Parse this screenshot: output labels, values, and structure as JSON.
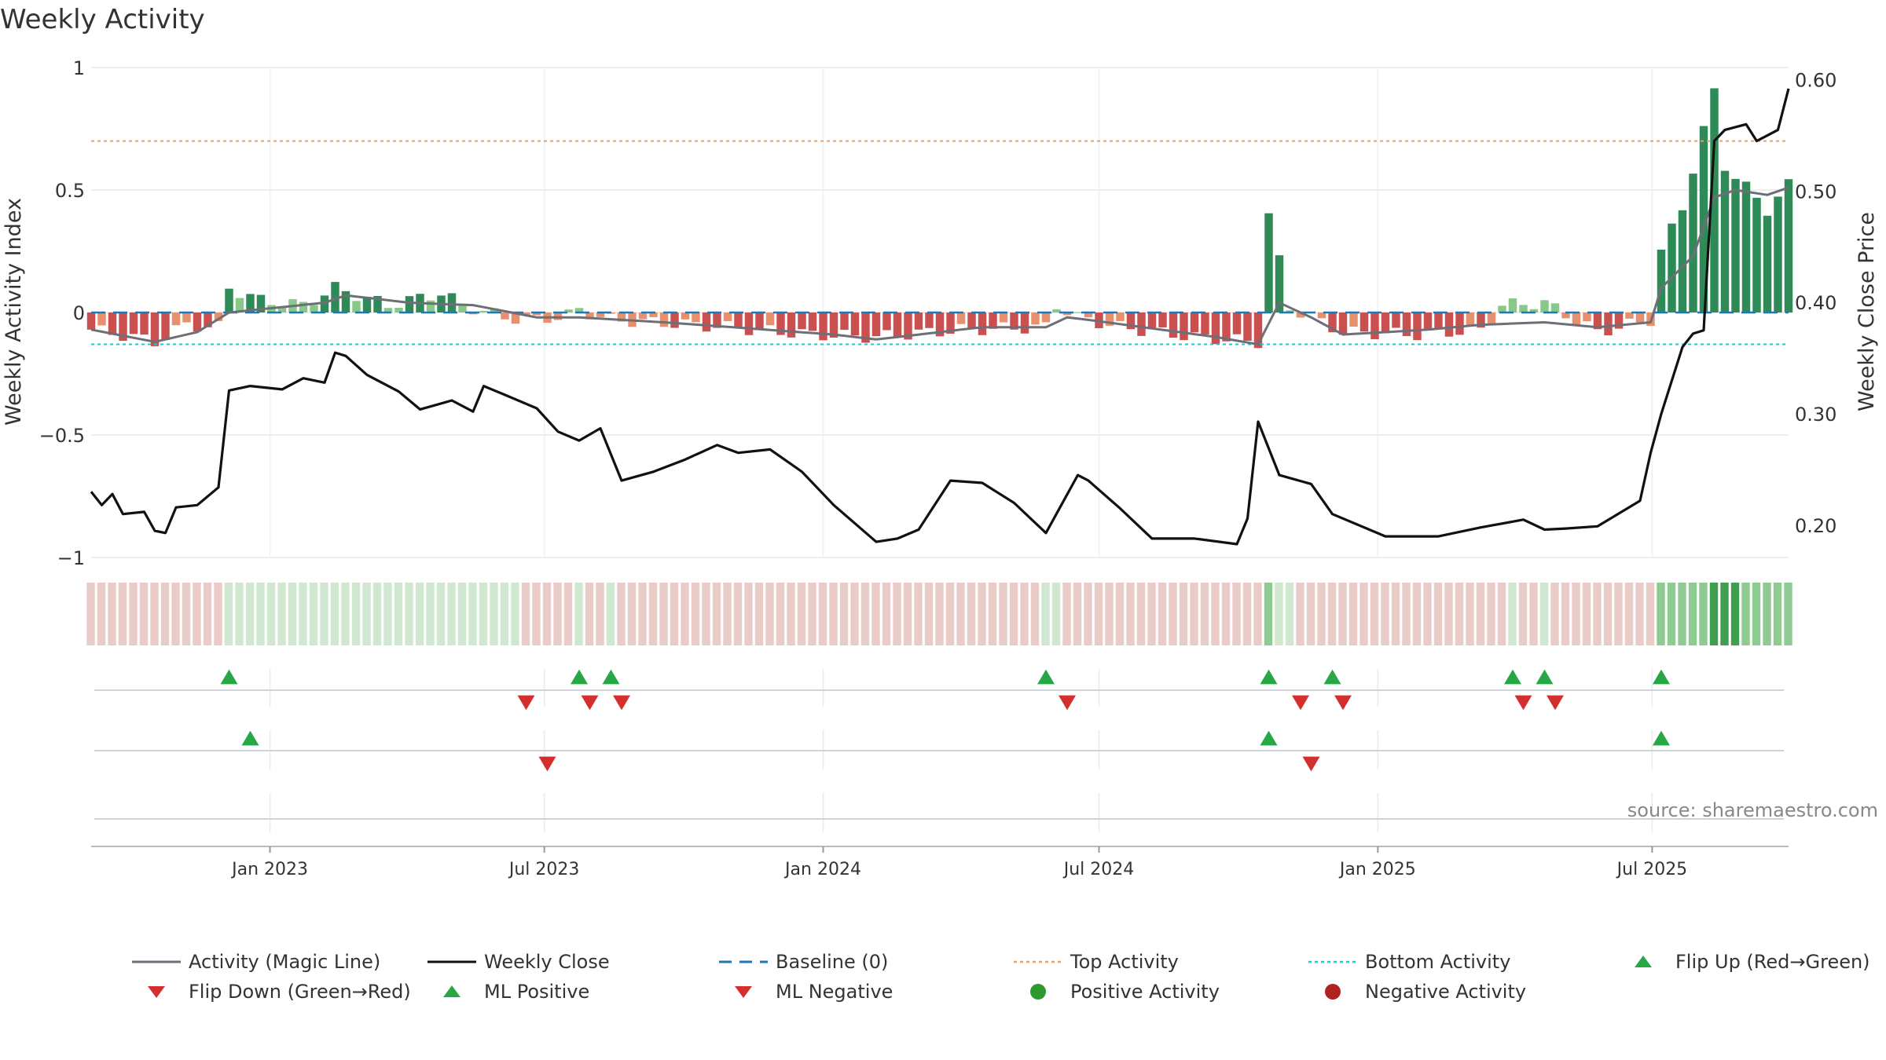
{
  "title": "Weekly Activity",
  "source": "source: sharemaestro.com",
  "colors": {
    "magic_line": "#6e6e78",
    "close_line": "#111111",
    "baseline": "#1f77b4",
    "top_activity": "#f0a060",
    "bottom_activity": "#22c5d5",
    "strong_green": "#2e8b57",
    "light_green": "#88c98a",
    "strong_red": "#c9504f",
    "light_red": "#e8906e",
    "marker_green": "#27a745",
    "marker_red": "#d32f2f",
    "positive_dot": "#2e9a2e",
    "negative_dot": "#b22222"
  },
  "legend": [
    {
      "label": "Activity (Magic Line)",
      "kind": "line",
      "color": "#6e6e78"
    },
    {
      "label": "Weekly Close",
      "kind": "line",
      "color": "#111111"
    },
    {
      "label": "Baseline (0)",
      "kind": "dash",
      "color": "#1f77b4"
    },
    {
      "label": "Top Activity",
      "kind": "dot",
      "color": "#f0a060"
    },
    {
      "label": "Bottom Activity",
      "kind": "dot",
      "color": "#22c5d5"
    },
    {
      "label": "Flip Up (Red→Green)",
      "kind": "tri-up",
      "color": "#27a745"
    },
    {
      "label": "Flip Down (Green→Red)",
      "kind": "tri-down",
      "color": "#d32f2f"
    },
    {
      "label": "ML Positive",
      "kind": "tri-up",
      "color": "#27a745"
    },
    {
      "label": "ML Negative",
      "kind": "tri-down",
      "color": "#d32f2f"
    },
    {
      "label": "Positive Activity",
      "kind": "circle",
      "color": "#2e9a2e"
    },
    {
      "label": "Negative Activity",
      "kind": "circle",
      "color": "#b22222"
    }
  ],
  "chart_data": {
    "type": "bar",
    "ylabel": "Weekly Activity Index",
    "ylabel_right": "Weekly Close Price",
    "ylim": [
      -1,
      1
    ],
    "y_ticks": [
      "1",
      "0.5",
      "0",
      "−0.5",
      "−1"
    ],
    "y_tick_values": [
      1,
      0.5,
      0,
      -0.5,
      -1
    ],
    "ylim_right": [
      0.171,
      0.611
    ],
    "y_ticks_right": [
      "0.60",
      "0.50",
      "0.40",
      "0.30",
      "0.20"
    ],
    "y_tick_values_right": [
      0.6,
      0.5,
      0.4,
      0.3,
      0.2
    ],
    "x_range": [
      "2022-09-05",
      "2025-09-29"
    ],
    "x_ticks": [
      "Jan 2023",
      "Jul 2023",
      "Jan 2024",
      "Jul 2024",
      "Jan 2025",
      "Jul 2025"
    ],
    "x_tick_dates": [
      "2023-01-01",
      "2023-07-01",
      "2024-01-01",
      "2024-07-01",
      "2025-01-01",
      "2025-07-01"
    ],
    "top_activity": 0.7,
    "bottom_activity": -0.13,
    "baseline": 0,
    "series_names": [
      "Activity (Magic Line)",
      "Weekly Close"
    ],
    "activity_keypoints": [
      [
        "2022-09-05",
        -0.07
      ],
      [
        "2022-10-03",
        -0.1
      ],
      [
        "2022-10-17",
        -0.12
      ],
      [
        "2022-11-07",
        -0.05
      ],
      [
        "2022-11-28",
        -0.06
      ],
      [
        "2022-12-05",
        0.1
      ],
      [
        "2022-12-26",
        0.05
      ],
      [
        "2023-01-23",
        0.03
      ],
      [
        "2023-02-13",
        0.1
      ],
      [
        "2023-03-20",
        0.03
      ],
      [
        "2023-04-24",
        0.08
      ],
      [
        "2023-05-08",
        0.03
      ],
      [
        "2023-06-05",
        -0.02
      ],
      [
        "2023-06-26",
        -0.03
      ],
      [
        "2023-07-17",
        -0.01
      ],
      [
        "2023-07-24",
        0.01
      ],
      [
        "2023-08-14",
        -0.03
      ],
      [
        "2023-09-11",
        -0.04
      ],
      [
        "2023-10-30",
        -0.06
      ],
      [
        "2023-12-25",
        -0.09
      ],
      [
        "2024-02-05",
        -0.1
      ],
      [
        "2024-04-01",
        -0.07
      ],
      [
        "2024-05-27",
        -0.06
      ],
      [
        "2024-06-03",
        0.03
      ],
      [
        "2024-06-17",
        -0.02
      ],
      [
        "2024-07-15",
        -0.06
      ],
      [
        "2024-09-02",
        -0.1
      ],
      [
        "2024-10-14",
        -0.12
      ],
      [
        "2024-10-21",
        0.4
      ],
      [
        "2024-11-04",
        0.02
      ],
      [
        "2024-12-09",
        -0.08
      ],
      [
        "2025-01-27",
        -0.09
      ],
      [
        "2025-03-10",
        -0.07
      ],
      [
        "2025-03-24",
        0.03
      ],
      [
        "2025-04-21",
        0.04
      ],
      [
        "2025-05-26",
        -0.08
      ],
      [
        "2025-06-30",
        -0.03
      ],
      [
        "2025-07-07",
        0.25
      ],
      [
        "2025-07-21",
        0.43
      ],
      [
        "2025-08-11",
        0.9
      ],
      [
        "2025-08-18",
        0.6
      ],
      [
        "2025-09-15",
        0.42
      ],
      [
        "2025-09-29",
        0.52
      ]
    ],
    "magic_line_keypoints": [
      [
        "2022-09-05",
        -0.07
      ],
      [
        "2022-10-17",
        -0.12
      ],
      [
        "2022-11-14",
        -0.08
      ],
      [
        "2022-12-05",
        0.0
      ],
      [
        "2023-02-06",
        0.04
      ],
      [
        "2023-02-20",
        0.07
      ],
      [
        "2023-04-03",
        0.04
      ],
      [
        "2023-05-15",
        0.03
      ],
      [
        "2023-06-26",
        -0.02
      ],
      [
        "2023-07-24",
        -0.02
      ],
      [
        "2023-09-18",
        -0.04
      ],
      [
        "2024-01-08",
        -0.09
      ],
      [
        "2024-02-05",
        -0.11
      ],
      [
        "2024-04-15",
        -0.06
      ],
      [
        "2024-05-27",
        -0.06
      ],
      [
        "2024-06-10",
        -0.02
      ],
      [
        "2024-06-24",
        -0.03
      ],
      [
        "2024-09-16",
        -0.1
      ],
      [
        "2024-10-14",
        -0.13
      ],
      [
        "2024-10-28",
        0.04
      ],
      [
        "2024-11-18",
        -0.02
      ],
      [
        "2024-12-09",
        -0.09
      ],
      [
        "2025-02-03",
        -0.07
      ],
      [
        "2025-03-10",
        -0.05
      ],
      [
        "2025-04-21",
        -0.04
      ],
      [
        "2025-05-26",
        -0.06
      ],
      [
        "2025-06-30",
        -0.04
      ],
      [
        "2025-07-07",
        0.1
      ],
      [
        "2025-07-28",
        0.23
      ],
      [
        "2025-08-11",
        0.47
      ],
      [
        "2025-08-25",
        0.5
      ],
      [
        "2025-09-15",
        0.48
      ],
      [
        "2025-09-29",
        0.51
      ]
    ],
    "close_keypoints": [
      [
        "2022-09-05",
        0.23
      ],
      [
        "2022-09-12",
        0.218
      ],
      [
        "2022-09-19",
        0.228
      ],
      [
        "2022-09-26",
        0.21
      ],
      [
        "2022-10-10",
        0.212
      ],
      [
        "2022-10-17",
        0.195
      ],
      [
        "2022-10-24",
        0.193
      ],
      [
        "2022-10-31",
        0.216
      ],
      [
        "2022-11-14",
        0.218
      ],
      [
        "2022-11-28",
        0.234
      ],
      [
        "2022-12-05",
        0.321
      ],
      [
        "2022-12-19",
        0.325
      ],
      [
        "2023-01-09",
        0.322
      ],
      [
        "2023-01-23",
        0.332
      ],
      [
        "2023-02-06",
        0.328
      ],
      [
        "2023-02-13",
        0.355
      ],
      [
        "2023-02-20",
        0.352
      ],
      [
        "2023-03-06",
        0.335
      ],
      [
        "2023-03-27",
        0.32
      ],
      [
        "2023-04-10",
        0.304
      ],
      [
        "2023-05-01",
        0.312
      ],
      [
        "2023-05-15",
        0.302
      ],
      [
        "2023-05-22",
        0.325
      ],
      [
        "2023-06-05",
        0.317
      ],
      [
        "2023-06-26",
        0.305
      ],
      [
        "2023-07-10",
        0.284
      ],
      [
        "2023-07-24",
        0.276
      ],
      [
        "2023-08-07",
        0.287
      ],
      [
        "2023-08-21",
        0.24
      ],
      [
        "2023-09-11",
        0.248
      ],
      [
        "2023-10-02",
        0.259
      ],
      [
        "2023-10-23",
        0.272
      ],
      [
        "2023-11-06",
        0.265
      ],
      [
        "2023-11-27",
        0.268
      ],
      [
        "2023-12-18",
        0.248
      ],
      [
        "2024-01-08",
        0.218
      ],
      [
        "2024-02-05",
        0.185
      ],
      [
        "2024-02-19",
        0.188
      ],
      [
        "2024-03-04",
        0.196
      ],
      [
        "2024-03-25",
        0.24
      ],
      [
        "2024-04-15",
        0.238
      ],
      [
        "2024-05-06",
        0.22
      ],
      [
        "2024-05-27",
        0.193
      ],
      [
        "2024-06-17",
        0.245
      ],
      [
        "2024-06-24",
        0.24
      ],
      [
        "2024-07-15",
        0.215
      ],
      [
        "2024-08-05",
        0.188
      ],
      [
        "2024-09-02",
        0.188
      ],
      [
        "2024-09-30",
        0.183
      ],
      [
        "2024-10-07",
        0.206
      ],
      [
        "2024-10-14",
        0.293
      ],
      [
        "2024-10-28",
        0.245
      ],
      [
        "2024-11-18",
        0.237
      ],
      [
        "2024-12-02",
        0.21
      ],
      [
        "2025-01-06",
        0.19
      ],
      [
        "2025-02-10",
        0.19
      ],
      [
        "2025-03-10",
        0.198
      ],
      [
        "2025-04-07",
        0.205
      ],
      [
        "2025-04-21",
        0.196
      ],
      [
        "2025-05-05",
        0.197
      ],
      [
        "2025-05-26",
        0.199
      ],
      [
        "2025-06-23",
        0.222
      ],
      [
        "2025-06-30",
        0.265
      ],
      [
        "2025-07-07",
        0.3
      ],
      [
        "2025-07-21",
        0.36
      ],
      [
        "2025-07-28",
        0.372
      ],
      [
        "2025-08-04",
        0.375
      ],
      [
        "2025-08-11",
        0.545
      ],
      [
        "2025-08-18",
        0.555
      ],
      [
        "2025-09-01",
        0.56
      ],
      [
        "2025-09-08",
        0.545
      ],
      [
        "2025-09-22",
        0.555
      ],
      [
        "2025-09-29",
        0.592
      ]
    ],
    "state_band_keypoints": [
      [
        "2022-09-05",
        "neg"
      ],
      [
        "2022-12-05",
        "pos"
      ],
      [
        "2023-06-19",
        "neg"
      ],
      [
        "2023-07-24",
        "pos"
      ],
      [
        "2023-07-31",
        "neg"
      ],
      [
        "2023-08-14",
        "pos"
      ],
      [
        "2023-08-21",
        "neg"
      ],
      [
        "2024-05-27",
        "pos"
      ],
      [
        "2024-06-10",
        "neg"
      ],
      [
        "2024-10-21",
        "pos-mid"
      ],
      [
        "2024-10-28",
        "pos"
      ],
      [
        "2024-11-11",
        "neg"
      ],
      [
        "2025-03-31",
        "pos"
      ],
      [
        "2025-04-07",
        "neg"
      ],
      [
        "2025-04-21",
        "pos"
      ],
      [
        "2025-04-28",
        "neg"
      ],
      [
        "2025-07-07",
        "pos-mid"
      ],
      [
        "2025-08-11",
        "pos-strong"
      ],
      [
        "2025-09-01",
        "pos-mid"
      ],
      [
        "2025-09-29",
        "pos-mid"
      ]
    ],
    "flip_up": [
      "2022-12-05",
      "2023-07-24",
      "2023-08-14",
      "2024-05-27",
      "2024-10-21",
      "2024-12-02",
      "2025-03-31",
      "2025-04-21",
      "2025-07-07"
    ],
    "flip_down": [
      "2023-06-19",
      "2023-07-31",
      "2023-08-21",
      "2024-06-10",
      "2024-11-11",
      "2024-12-09",
      "2025-04-07",
      "2025-04-28"
    ],
    "ml_positive": [
      "2022-12-19",
      "2024-10-21",
      "2025-07-07"
    ],
    "ml_negative": [
      "2023-07-03",
      "2024-11-18"
    ]
  }
}
